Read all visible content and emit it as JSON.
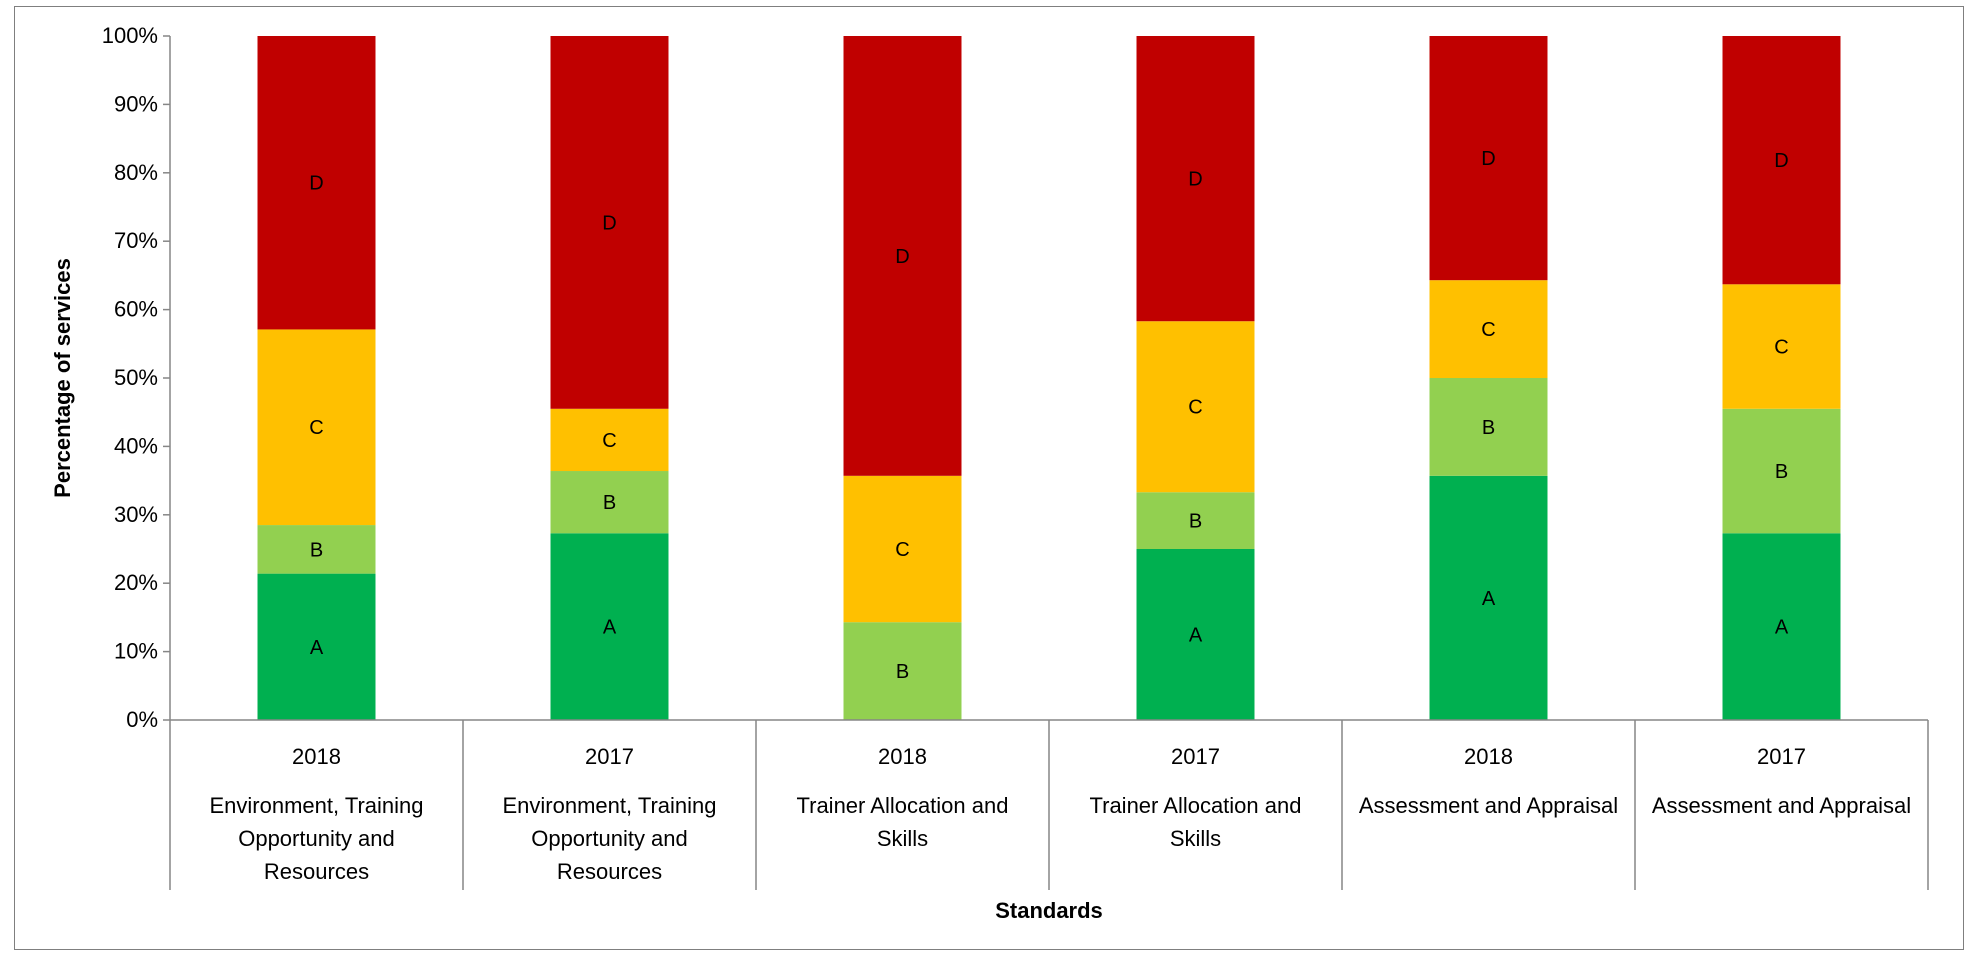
{
  "chart_data": {
    "type": "bar",
    "stacked": true,
    "percent": true,
    "xlabel": "Standards",
    "ylabel": "Percentage of services",
    "ylim": [
      0,
      100
    ],
    "yticks": [
      "0%",
      "10%",
      "20%",
      "30%",
      "40%",
      "50%",
      "60%",
      "70%",
      "80%",
      "90%",
      "100%"
    ],
    "grid": false,
    "legend": "none",
    "categories": [
      {
        "year": "2018",
        "lines": [
          "Environment, Training",
          "Opportunity and",
          "Resources"
        ]
      },
      {
        "year": "2017",
        "lines": [
          "Environment, Training",
          "Opportunity and",
          "Resources"
        ]
      },
      {
        "year": "2018",
        "lines": [
          "Trainer Allocation and",
          "Skills"
        ]
      },
      {
        "year": "2017",
        "lines": [
          "Trainer Allocation and",
          "Skills"
        ]
      },
      {
        "year": "2018",
        "lines": [
          "Assessment and Appraisal"
        ]
      },
      {
        "year": "2017",
        "lines": [
          "Assessment and Appraisal"
        ]
      }
    ],
    "series": [
      {
        "name": "A",
        "color": "#00b050",
        "values": [
          21.4,
          27.3,
          0,
          25.0,
          35.7,
          27.3
        ]
      },
      {
        "name": "B",
        "color": "#92d050",
        "values": [
          7.1,
          9.1,
          14.3,
          8.3,
          14.3,
          18.2
        ]
      },
      {
        "name": "C",
        "color": "#ffc000",
        "values": [
          28.6,
          9.1,
          21.4,
          25.0,
          14.3,
          18.2
        ]
      },
      {
        "name": "D",
        "color": "#c00000",
        "values": [
          42.9,
          54.5,
          64.3,
          41.7,
          35.7,
          36.3
        ]
      }
    ]
  }
}
